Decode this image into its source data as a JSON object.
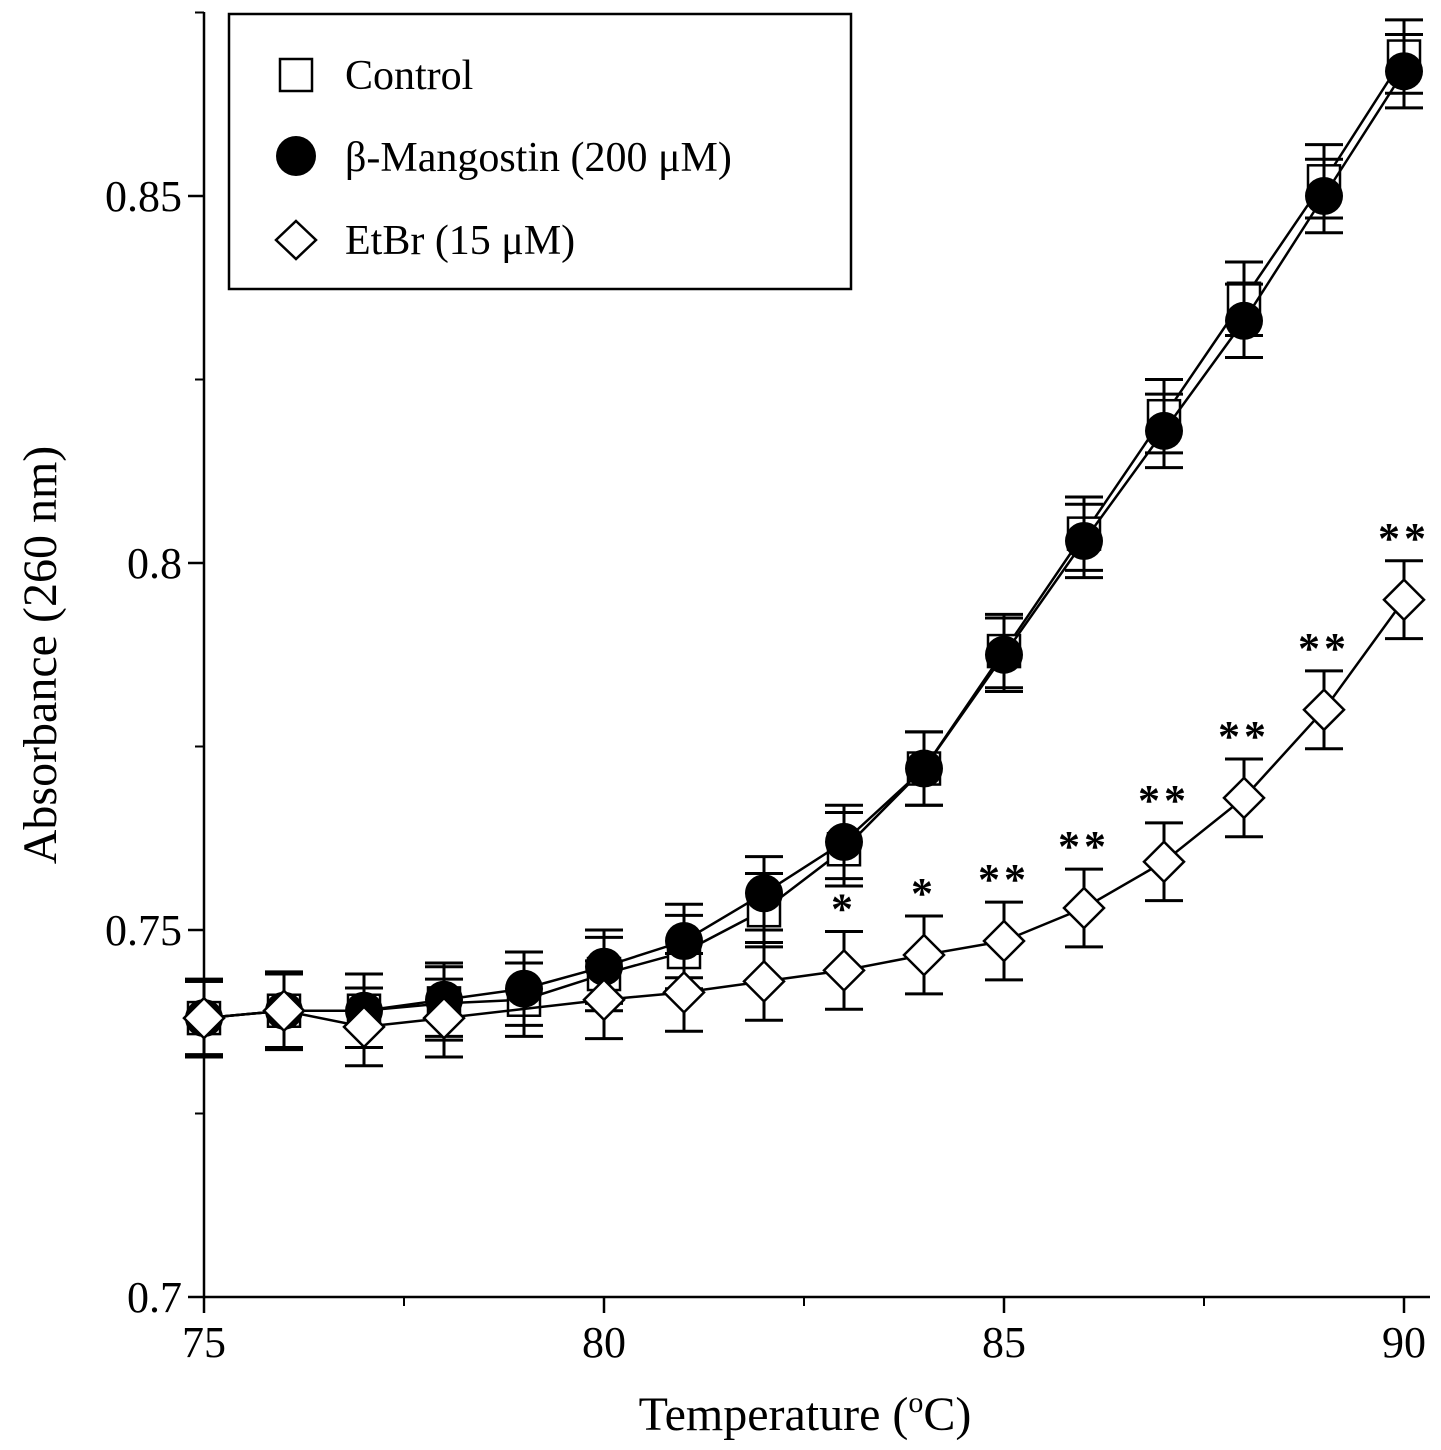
{
  "chart_data": {
    "type": "line",
    "xlabel": "Temperature (",
    "xlabel_sup": "o",
    "xlabel_end": "C)",
    "ylabel": "Absorbance (260 nm)",
    "xlim": [
      75,
      90
    ],
    "ylim": [
      0.7,
      0.875
    ],
    "xticks": [
      75,
      80,
      85,
      90
    ],
    "xtick_labels": [
      "75",
      "80",
      "85",
      "90"
    ],
    "yticks": [
      0.7,
      0.75,
      0.8,
      0.85
    ],
    "ytick_labels": [
      "0.7",
      "0.75",
      "0.8",
      "0.85"
    ],
    "grid": false,
    "legend_position": "top-left",
    "x": [
      75,
      76,
      77,
      78,
      79,
      80,
      81,
      82,
      83,
      84,
      85,
      86,
      87,
      88,
      89,
      90
    ],
    "series": [
      {
        "name": "Control",
        "marker": "open-square",
        "values": [
          0.738,
          0.739,
          0.739,
          0.74,
          0.7405,
          0.744,
          0.747,
          0.7527,
          0.761,
          0.772,
          0.788,
          0.804,
          0.82,
          0.836,
          0.852,
          0.869
        ],
        "error": 0.005
      },
      {
        "name": "β-Mangostin (200 μM)",
        "marker": "filled-circle",
        "values": [
          0.738,
          0.739,
          0.739,
          0.7405,
          0.742,
          0.745,
          0.7485,
          0.755,
          0.762,
          0.772,
          0.7875,
          0.803,
          0.818,
          0.833,
          0.85,
          0.867
        ],
        "error": 0.005
      },
      {
        "name": "EtBr (15 μM)",
        "marker": "open-diamond",
        "values": [
          0.738,
          0.739,
          0.7368,
          0.738,
          null,
          0.7405,
          0.7415,
          0.743,
          0.7445,
          0.7466,
          0.7485,
          0.753,
          0.7593,
          0.768,
          0.78,
          0.795
        ],
        "error": 0.0053,
        "significance": [
          "",
          "",
          "",
          "",
          "",
          "",
          "",
          "",
          "*",
          "*",
          "**",
          "**",
          "**",
          "**",
          "**",
          "**"
        ]
      }
    ]
  }
}
